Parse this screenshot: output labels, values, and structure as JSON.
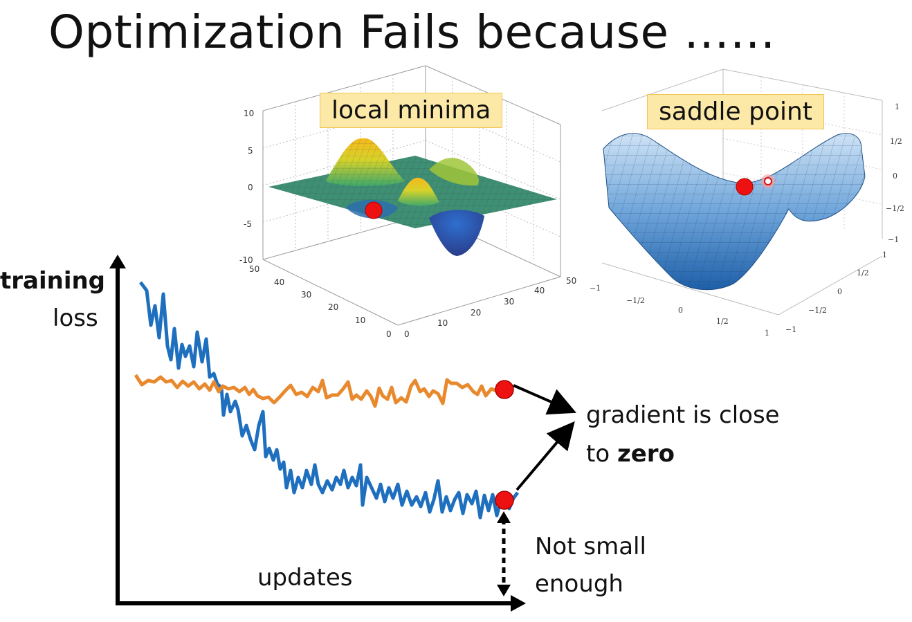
{
  "title": "Optimization Fails because ……",
  "labels": {
    "local_minima": "local minima",
    "saddle_point": "saddle point",
    "y_axis_bold": "training",
    "y_axis_normal": "loss",
    "x_axis": "updates",
    "gradient_line1": "gradient is close",
    "gradient_line2_prefix": "to ",
    "gradient_line2_bold": "zero",
    "not_small_1": "Not small",
    "not_small_2": "enough"
  },
  "local_minima_plot": {
    "z_ticks": [
      "10",
      "5",
      "0",
      "-5",
      "-10"
    ],
    "left_ticks": [
      "50",
      "40",
      "30",
      "20",
      "10",
      "0"
    ],
    "right_ticks": [
      "0",
      "10",
      "20",
      "30",
      "40",
      "50"
    ]
  },
  "saddle_plot": {
    "z_ticks": [
      "1",
      "1/2",
      "0",
      "−1/2",
      "−1"
    ],
    "front_ticks": [
      "−1",
      "−1/2",
      "0",
      "1/2",
      "1"
    ],
    "side_ticks": [
      "1",
      "1/2",
      "0",
      "−1/2",
      "−1"
    ]
  },
  "colors": {
    "blue_curve": "#1f6fbf",
    "orange_curve": "#e8892e",
    "red_dot": "#ee1111",
    "label_fill": "#fde9a7"
  }
}
